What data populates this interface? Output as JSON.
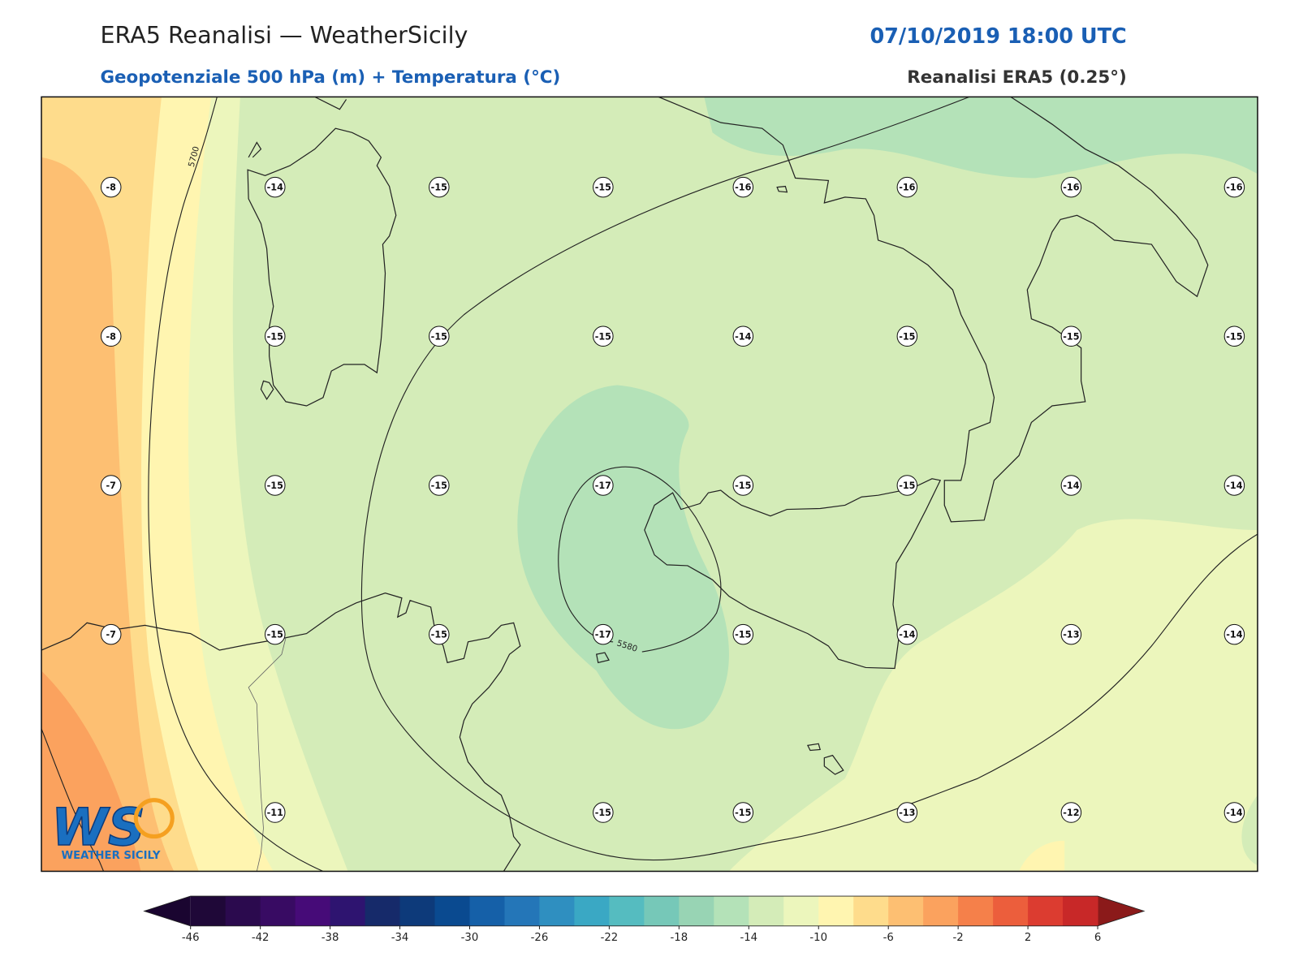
{
  "header": {
    "title": "ERA5 Reanalisi — WeatherSicily",
    "datetime": "07/10/2019 18:00 UTC",
    "subtitle": "Geopotenziale 500 hPa (m) + Temperatura (°C)",
    "source": "Reanalisi ERA5 (0.25°)"
  },
  "map": {
    "contour_labels": [
      "5700",
      "5580"
    ],
    "points": [
      [
        -8,
        -14,
        -15,
        -15,
        -16,
        -16,
        -16,
        -16
      ],
      [
        -8,
        -15,
        -15,
        -15,
        -14,
        -15,
        -15,
        -15
      ],
      [
        -7,
        -15,
        -15,
        -17,
        -15,
        -15,
        -14,
        -14
      ],
      [
        -7,
        -15,
        -15,
        -17,
        -15,
        -14,
        -13,
        -14
      ],
      [
        null,
        -11,
        null,
        -15,
        -15,
        -13,
        -12,
        -14
      ]
    ]
  },
  "logo": {
    "mark": "WS",
    "text": "WEATHER SICILY"
  },
  "colorbar": {
    "lim": [
      -46,
      6
    ],
    "ticks": [
      -46,
      -42,
      -38,
      -34,
      -30,
      -26,
      -22,
      -18,
      -14,
      -10,
      -6,
      -2,
      2,
      6
    ],
    "under_color": "#1a0530",
    "over_color": "#8b1a1a",
    "colors": [
      "#1f0838",
      "#2b0a4e",
      "#380b63",
      "#460b78",
      "#2e1470",
      "#162a6a",
      "#0d3a7a",
      "#0a4a90",
      "#1560a8",
      "#2476b8",
      "#2f8fc0",
      "#3aa8c4",
      "#55bcc0",
      "#76c8b8",
      "#98d4b4",
      "#b4e2b8",
      "#d4ecb8",
      "#ecf6bc",
      "#fff5b0",
      "#fedc8c",
      "#fdbf72",
      "#fba25e",
      "#f5804a",
      "#ec5e3c",
      "#dc3c30",
      "#c82828"
    ]
  }
}
